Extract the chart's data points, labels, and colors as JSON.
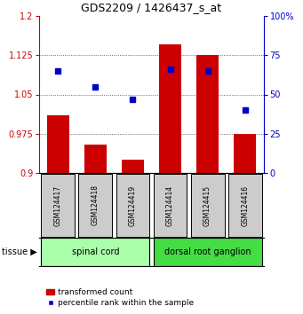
{
  "title": "GDS2209 / 1426437_s_at",
  "samples": [
    "GSM124417",
    "GSM124418",
    "GSM124419",
    "GSM124414",
    "GSM124415",
    "GSM124416"
  ],
  "transformed_count": [
    1.01,
    0.955,
    0.925,
    1.145,
    1.125,
    0.975
  ],
  "percentile_rank": [
    65,
    55,
    47,
    66,
    65,
    40
  ],
  "ylim_left": [
    0.9,
    1.2
  ],
  "ylim_right": [
    0,
    100
  ],
  "yticks_left": [
    0.9,
    0.975,
    1.05,
    1.125,
    1.2
  ],
  "yticks_right": [
    0,
    25,
    50,
    75,
    100
  ],
  "ytick_labels_left": [
    "0.9",
    "0.975",
    "1.05",
    "1.125",
    "1.2"
  ],
  "ytick_labels_right": [
    "0",
    "25",
    "50",
    "75",
    "100%"
  ],
  "bar_color": "#cc0000",
  "dot_color": "#0000cc",
  "groups": [
    {
      "label": "spinal cord",
      "samples": [
        0,
        1,
        2
      ],
      "color": "#aaffaa"
    },
    {
      "label": "dorsal root ganglion",
      "samples": [
        3,
        4,
        5
      ],
      "color": "#44dd44"
    }
  ],
  "tissue_label": "tissue",
  "left_axis_color": "#cc0000",
  "right_axis_color": "#0000cc",
  "grid_color": "#444444",
  "background_color": "#ffffff",
  "sample_box_color": "#cccccc"
}
